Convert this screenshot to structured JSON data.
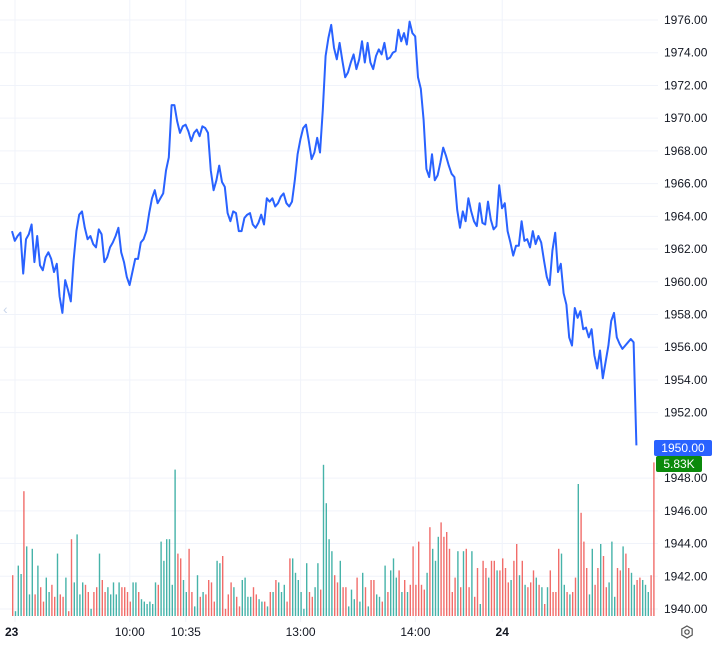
{
  "chart_data": {
    "type": "line",
    "title": "",
    "xlabel": "",
    "ylabel": "",
    "ylim": [
      1939.6,
      1977.2
    ],
    "y_ticks": [
      "1940.00",
      "1942.00",
      "1944.00",
      "1946.00",
      "1948.00",
      "1952.00",
      "1954.00",
      "1956.00",
      "1958.00",
      "1960.00",
      "1962.00",
      "1964.00",
      "1966.00",
      "1968.00",
      "1970.00",
      "1972.00",
      "1974.00",
      "1976.00"
    ],
    "x_ticks": [
      {
        "label": "23",
        "bold": true
      },
      {
        "label": "10:00",
        "bold": false
      },
      {
        "label": "10:35",
        "bold": false
      },
      {
        "label": "13:00",
        "bold": false
      },
      {
        "label": "14:00",
        "bold": false
      },
      {
        "label": "24",
        "bold": true
      }
    ],
    "x_tick_bars": [
      0,
      41,
      61,
      102,
      143,
      174
    ],
    "grid": true,
    "legend": "none",
    "last_price": {
      "value": "1950.00",
      "color": "#2962ff"
    },
    "last_volume": {
      "value": "5.83K",
      "color": "#0b8a0b"
    },
    "line_color": "#2962ff",
    "up_color": "#26a69a",
    "down_color": "#ef5350",
    "series": [
      {
        "values": [
          1963.1,
          1962.5,
          1962.8,
          1963.0,
          1960.5,
          1962.6,
          1962.9,
          1963.5,
          1961.2,
          1962.8,
          1961.0,
          1960.7,
          1961.5,
          1961.8,
          1961.4,
          1960.6,
          1961.1,
          1959.1,
          1958.1,
          1960.1,
          1959.5,
          1958.8,
          1961.3,
          1963.1,
          1964.1,
          1964.3,
          1963.3,
          1962.6,
          1962.8,
          1962.3,
          1962.1,
          1963.2,
          1962.9,
          1961.2,
          1961.5,
          1962.1,
          1962.4,
          1962.8,
          1963.3,
          1961.8,
          1961.2,
          1960.3,
          1959.8,
          1960.6,
          1961.4,
          1961.4,
          1962.4,
          1962.6,
          1963.1,
          1964.2,
          1965.1,
          1965.6,
          1964.8,
          1965.1,
          1965.4,
          1966.8,
          1967.6,
          1970.8,
          1970.8,
          1969.8,
          1969.1,
          1969.5,
          1969.6,
          1969.2,
          1968.6,
          1969.1,
          1969.3,
          1968.9,
          1969.5,
          1969.4,
          1969.1,
          1966.8,
          1965.6,
          1966.2,
          1967.1,
          1966.1,
          1965.8,
          1964.2,
          1963.7,
          1964.3,
          1964.2,
          1963.1,
          1963.1,
          1963.9,
          1964.1,
          1964.2,
          1963.5,
          1963.3,
          1963.6,
          1964.1,
          1963.5,
          1965.1,
          1964.9,
          1965.1,
          1964.6,
          1964.8,
          1965.2,
          1965.4,
          1964.8,
          1964.6,
          1964.9,
          1966.2,
          1967.8,
          1968.7,
          1969.4,
          1969.6,
          1968.6,
          1967.5,
          1967.9,
          1968.8,
          1967.9,
          1970.5,
          1973.8,
          1974.9,
          1975.7,
          1974.3,
          1973.6,
          1974.6,
          1973.5,
          1972.5,
          1972.8,
          1973.4,
          1973.9,
          1973.0,
          1973.6,
          1974.7,
          1973.4,
          1974.6,
          1973.4,
          1973.0,
          1973.8,
          1974.2,
          1973.9,
          1974.6,
          1973.6,
          1973.7,
          1974.0,
          1974.1,
          1975.4,
          1974.7,
          1975.2,
          1974.5,
          1975.9,
          1975.2,
          1975.0,
          1972.5,
          1971.8,
          1969.9,
          1966.9,
          1966.4,
          1967.8,
          1966.2,
          1966.5,
          1967.3,
          1968.2,
          1967.7,
          1967.1,
          1966.6,
          1966.4,
          1964.4,
          1963.3,
          1964.3,
          1963.7,
          1965.1,
          1964.3,
          1963.7,
          1963.4,
          1964.8,
          1963.6,
          1963.5,
          1964.9,
          1963.8,
          1963.2,
          1963.4,
          1965.9,
          1964.5,
          1964.8,
          1963.1,
          1962.4,
          1961.6,
          1962.2,
          1962.2,
          1963.7,
          1962.5,
          1962.6,
          1962.1,
          1963.1,
          1962.3,
          1962.8,
          1962.4,
          1961.3,
          1960.3,
          1959.8,
          1961.9,
          1963.0,
          1960.6,
          1961.1,
          1959.3,
          1958.6,
          1956.6,
          1956.1,
          1958.4,
          1957.8,
          1958.2,
          1957.1,
          1957.2,
          1956.6,
          1957.1,
          1955.5,
          1954.7,
          1955.8,
          1954.1,
          1955.1,
          1956.1,
          1957.6,
          1958.1,
          1956.6,
          1956.2,
          1955.9,
          1956.1,
          1956.3,
          1956.5,
          1956.3,
          1950.0
        ]
      }
    ],
    "volume": {
      "values": [
        34,
        4,
        42,
        35,
        104,
        58,
        18,
        56,
        18,
        42,
        24,
        12,
        32,
        20,
        26,
        16,
        52,
        18,
        16,
        32,
        4,
        64,
        28,
        68,
        18,
        28,
        26,
        20,
        6,
        20,
        24,
        52,
        30,
        20,
        24,
        18,
        28,
        18,
        28,
        24,
        24,
        20,
        12,
        28,
        28,
        20,
        14,
        12,
        10,
        12,
        10,
        28,
        26,
        62,
        46,
        64,
        64,
        26,
        122,
        52,
        48,
        30,
        20,
        56,
        20,
        8,
        34,
        16,
        20,
        18,
        30,
        28,
        12,
        46,
        44,
        50,
        6,
        18,
        28,
        24,
        16,
        8,
        30,
        32,
        16,
        16,
        24,
        18,
        14,
        12,
        12,
        8,
        20,
        20,
        30,
        28,
        20,
        26,
        12,
        48,
        48,
        36,
        30,
        20,
        6,
        44,
        20,
        16,
        24,
        44,
        22,
        126,
        94,
        64,
        54,
        34,
        28,
        46,
        24,
        24,
        8,
        22,
        14,
        32,
        12,
        36,
        24,
        8,
        30,
        30,
        18,
        16,
        12,
        42,
        20,
        38,
        48,
        32,
        38,
        20,
        30,
        20,
        26,
        58,
        26,
        62,
        26,
        22,
        36,
        74,
        56,
        46,
        66,
        78,
        66,
        70,
        56,
        20,
        32,
        54,
        24,
        54,
        56,
        24,
        54,
        16,
        40,
        10,
        46,
        40,
        32,
        46,
        46,
        38,
        38,
        48,
        40,
        28,
        30,
        46,
        60,
        34,
        46,
        26,
        24,
        28,
        38,
        32,
        26,
        24,
        10,
        24,
        38,
        20,
        20,
        56,
        52,
        26,
        20,
        18,
        20,
        32,
        110,
        86,
        62,
        40,
        18,
        56,
        26,
        40,
        60,
        50,
        24,
        28,
        62,
        16,
        40,
        38,
        58,
        52,
        40,
        36,
        26,
        30,
        32,
        30,
        26,
        20,
        34,
        128
      ],
      "down": [
        1,
        0,
        0,
        0,
        1,
        0,
        0,
        0,
        1,
        0,
        1,
        1,
        0,
        0,
        1,
        1,
        0,
        1,
        1,
        0,
        1,
        1,
        0,
        0,
        0,
        0,
        1,
        1,
        0,
        1,
        1,
        0,
        1,
        1,
        0,
        0,
        0,
        0,
        0,
        1,
        1,
        1,
        1,
        0,
        0,
        1,
        0,
        0,
        0,
        0,
        0,
        0,
        1,
        0,
        0,
        0,
        0,
        0,
        0,
        1,
        1,
        0,
        0,
        1,
        1,
        0,
        0,
        1,
        0,
        1,
        1,
        1,
        1,
        0,
        0,
        1,
        1,
        1,
        1,
        0,
        1,
        1,
        0,
        0,
        0,
        0,
        1,
        1,
        0,
        0,
        1,
        0,
        1,
        0,
        1,
        0,
        0,
        0,
        1,
        1,
        0,
        0,
        0,
        0,
        0,
        0,
        1,
        1,
        0,
        0,
        1,
        0,
        0,
        0,
        0,
        1,
        1,
        0,
        1,
        1,
        0,
        0,
        0,
        1,
        0,
        0,
        1,
        0,
        1,
        1,
        0,
        0,
        1,
        0,
        1,
        0,
        0,
        0,
        1,
        0,
        1,
        0,
        1,
        1,
        1,
        1,
        1,
        1,
        0,
        1,
        0,
        0,
        0,
        1,
        1,
        1,
        1,
        1,
        1,
        0,
        1,
        0,
        1,
        1,
        0,
        1,
        1,
        0,
        1,
        1,
        0,
        1,
        1,
        0,
        1,
        1,
        1,
        1,
        0,
        1,
        1,
        0,
        1,
        0,
        1,
        1,
        1,
        0,
        1,
        0,
        1,
        0,
        1,
        1,
        1,
        1,
        0,
        0,
        1,
        0,
        1,
        1,
        0,
        1,
        1,
        1,
        0,
        0,
        1,
        1,
        0,
        1,
        1,
        0,
        0,
        0,
        1,
        1,
        0,
        1,
        1,
        0,
        0,
        1,
        1,
        0,
        0,
        0,
        1,
        1,
        0,
        1
      ]
    }
  }
}
